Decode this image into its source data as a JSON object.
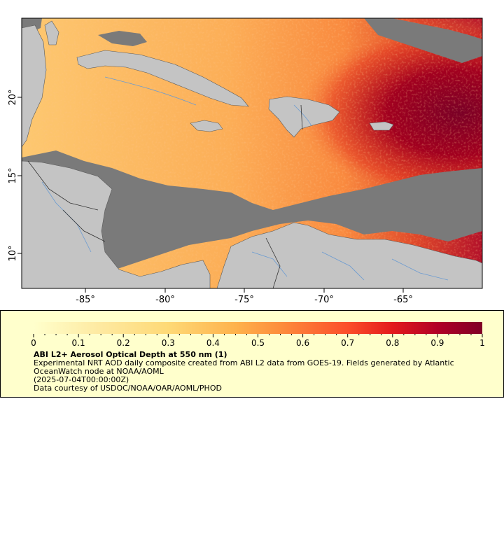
{
  "map": {
    "lon_ticks": [
      "-85°",
      "-80°",
      "-75°",
      "-70°",
      "-65°"
    ],
    "lat_ticks": [
      "20°",
      "15°",
      "10°"
    ],
    "colors": {
      "land": "#c4c4c4",
      "no_data": "#7a7a7a",
      "rivers": "#6b9bd1",
      "borders": "#5a5a5a"
    },
    "dominant_features": [
      "Saharan dust plume high AOD east of Lesser Antilles",
      "Cuba, Hispaniola, Jamaica, Puerto Rico land masks",
      "Central America and northern South America land masks"
    ]
  },
  "legend": {
    "scale_ticks": [
      "0",
      "0.1",
      "0.2",
      "0.3",
      "0.4",
      "0.5",
      "0.6",
      "0.7",
      "0.8",
      "0.9",
      "1"
    ],
    "title": "ABI L2+ Aerosol Optical Depth at 550 nm (1)",
    "line1": "Experimental NRT AOD daily composite created from ABI L2 data from GOES-19. Fields generated by Atlantic",
    "line2": "OceanWatch node at NOAA/AOML",
    "line3": "(2025-07-04T00:00:00Z)",
    "line4": "Data courtesy of USDOC/NOAA/OAR/AOML/PHOD",
    "color_stops": [
      "#ffffcc",
      "#fed976",
      "#feb24c",
      "#fd8d3c",
      "#fc4e2a",
      "#e31a1c",
      "#b10026",
      "#800026"
    ]
  }
}
